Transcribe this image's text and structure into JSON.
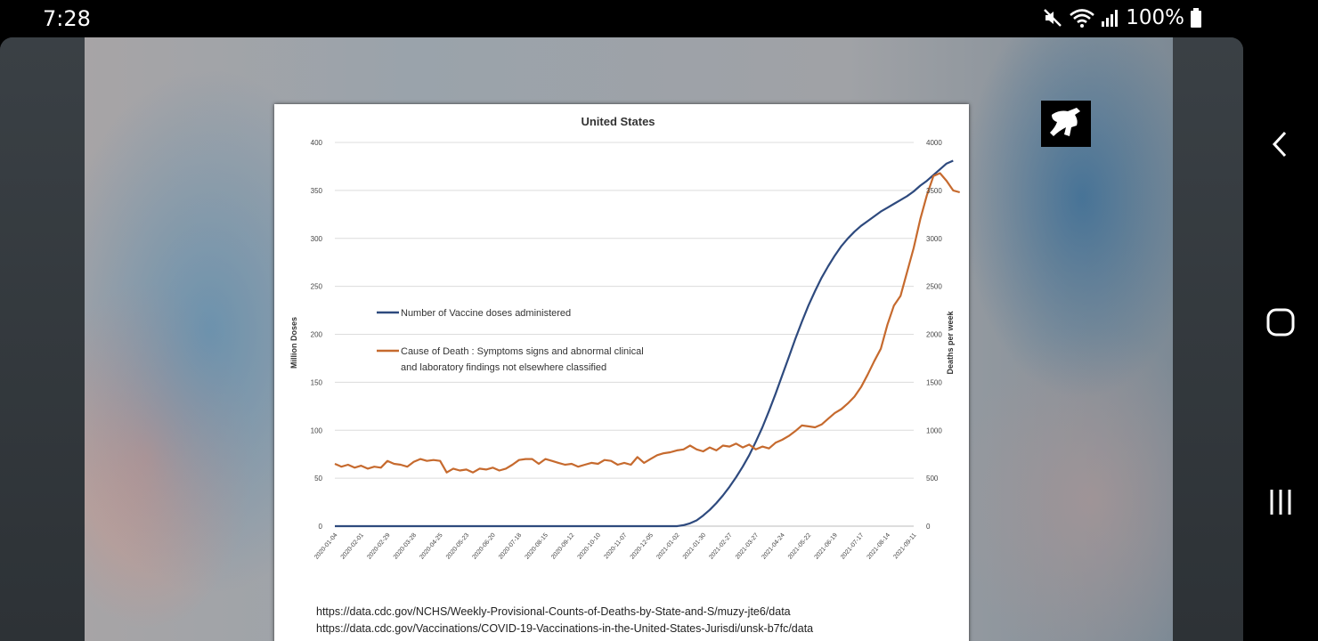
{
  "status_bar": {
    "time": "7:28",
    "battery": "100%"
  },
  "chart_data": {
    "type": "line",
    "title": "United States",
    "ylabel_left": "Million Doses",
    "ylabel_right": "Deaths per week",
    "ylim_left": [
      0,
      400
    ],
    "ylim_right": [
      0,
      4000
    ],
    "y_ticks_left": [
      "0",
      "50",
      "100",
      "150",
      "200",
      "250",
      "300",
      "350",
      "400"
    ],
    "y_ticks_right": [
      "0",
      "500",
      "1000",
      "1500",
      "2000",
      "2500",
      "3000",
      "3500",
      "4000"
    ],
    "x_ticks": [
      "2020-01-04",
      "2020-02-01",
      "2020-02-29",
      "2020-03-28",
      "2020-04-25",
      "2020-05-23",
      "2020-06-20",
      "2020-07-18",
      "2020-08-15",
      "2020-09-12",
      "2020-10-10",
      "2020-11-07",
      "2020-12-05",
      "2021-01-02",
      "2021-01-30",
      "2021-02-27",
      "2021-03-27",
      "2021-04-24",
      "2021-05-22",
      "2021-06-19",
      "2021-07-17",
      "2021-08-14",
      "2021-09-11"
    ],
    "grid": "horizontal",
    "legend_position": "center-left",
    "series": [
      {
        "name": "Number of Vaccine doses administered",
        "axis": "left",
        "color": "#2e4a7e",
        "points": [
          [
            0,
            0
          ],
          [
            20,
            0
          ],
          [
            40,
            0
          ],
          [
            52,
            0
          ],
          [
            53,
            1
          ],
          [
            54,
            3
          ],
          [
            55,
            6
          ],
          [
            56,
            11
          ],
          [
            57,
            17
          ],
          [
            58,
            24
          ],
          [
            59,
            32
          ],
          [
            60,
            41
          ],
          [
            61,
            51
          ],
          [
            62,
            62
          ],
          [
            63,
            74
          ],
          [
            64,
            88
          ],
          [
            65,
            103
          ],
          [
            66,
            120
          ],
          [
            67,
            138
          ],
          [
            68,
            157
          ],
          [
            69,
            176
          ],
          [
            70,
            195
          ],
          [
            71,
            213
          ],
          [
            72,
            230
          ],
          [
            73,
            245
          ],
          [
            74,
            259
          ],
          [
            75,
            271
          ],
          [
            76,
            282
          ],
          [
            77,
            292
          ],
          [
            78,
            300
          ],
          [
            79,
            307
          ],
          [
            80,
            313
          ],
          [
            81,
            318
          ],
          [
            82,
            323
          ],
          [
            83,
            328
          ],
          [
            84,
            332
          ],
          [
            85,
            336
          ],
          [
            86,
            340
          ],
          [
            87,
            344
          ],
          [
            88,
            349
          ],
          [
            89,
            355
          ],
          [
            90,
            360
          ],
          [
            91,
            366
          ],
          [
            92,
            372
          ],
          [
            93,
            378
          ],
          [
            94,
            381
          ]
        ]
      },
      {
        "name": "Cause of Death : Symptoms signs and abnormal clinical",
        "name_line2": "and laboratory findings not elsewhere classified",
        "axis": "right",
        "color": "#c66a2e",
        "points": [
          [
            0,
            650
          ],
          [
            1,
            620
          ],
          [
            2,
            640
          ],
          [
            3,
            610
          ],
          [
            4,
            630
          ],
          [
            5,
            600
          ],
          [
            6,
            620
          ],
          [
            7,
            610
          ],
          [
            8,
            680
          ],
          [
            9,
            650
          ],
          [
            10,
            640
          ],
          [
            11,
            620
          ],
          [
            12,
            670
          ],
          [
            13,
            700
          ],
          [
            14,
            680
          ],
          [
            15,
            690
          ],
          [
            16,
            680
          ],
          [
            17,
            560
          ],
          [
            18,
            600
          ],
          [
            19,
            580
          ],
          [
            20,
            590
          ],
          [
            21,
            560
          ],
          [
            22,
            600
          ],
          [
            23,
            590
          ],
          [
            24,
            610
          ],
          [
            25,
            580
          ],
          [
            26,
            600
          ],
          [
            27,
            640
          ],
          [
            28,
            690
          ],
          [
            29,
            700
          ],
          [
            30,
            700
          ],
          [
            31,
            650
          ],
          [
            32,
            700
          ],
          [
            33,
            680
          ],
          [
            34,
            660
          ],
          [
            35,
            640
          ],
          [
            36,
            650
          ],
          [
            37,
            620
          ],
          [
            38,
            640
          ],
          [
            39,
            660
          ],
          [
            40,
            650
          ],
          [
            41,
            690
          ],
          [
            42,
            680
          ],
          [
            43,
            640
          ],
          [
            44,
            660
          ],
          [
            45,
            640
          ],
          [
            46,
            720
          ],
          [
            47,
            660
          ],
          [
            48,
            700
          ],
          [
            49,
            740
          ],
          [
            50,
            760
          ],
          [
            51,
            770
          ],
          [
            52,
            790
          ],
          [
            53,
            800
          ],
          [
            54,
            840
          ],
          [
            55,
            800
          ],
          [
            56,
            780
          ],
          [
            57,
            820
          ],
          [
            58,
            790
          ],
          [
            59,
            840
          ],
          [
            60,
            830
          ],
          [
            61,
            860
          ],
          [
            62,
            820
          ],
          [
            63,
            850
          ],
          [
            64,
            800
          ],
          [
            65,
            830
          ],
          [
            66,
            810
          ],
          [
            67,
            870
          ],
          [
            68,
            900
          ],
          [
            69,
            940
          ],
          [
            70,
            990
          ],
          [
            71,
            1050
          ],
          [
            72,
            1040
          ],
          [
            73,
            1030
          ],
          [
            74,
            1060
          ],
          [
            75,
            1120
          ],
          [
            76,
            1180
          ],
          [
            77,
            1220
          ],
          [
            78,
            1280
          ],
          [
            79,
            1350
          ],
          [
            80,
            1450
          ],
          [
            81,
            1580
          ],
          [
            82,
            1720
          ],
          [
            83,
            1850
          ],
          [
            84,
            2100
          ],
          [
            85,
            2300
          ],
          [
            86,
            2400
          ],
          [
            87,
            2650
          ],
          [
            88,
            2900
          ],
          [
            89,
            3200
          ],
          [
            90,
            3450
          ],
          [
            91,
            3650
          ],
          [
            92,
            3680
          ],
          [
            93,
            3600
          ],
          [
            94,
            3500
          ],
          [
            95,
            3480
          ]
        ]
      }
    ]
  },
  "sources": [
    "https://data.cdc.gov/NCHS/Weekly-Provisional-Counts-of-Deaths-by-State-and-S/muzy-jte6/data",
    "https://data.cdc.gov/Vaccinations/COVID-19-Vaccinations-in-the-United-States-Jurisdi/unsk-b7fc/data"
  ],
  "nav": {
    "back_icon": "chevron-left-icon",
    "home_icon": "home-icon",
    "recents_icon": "recents-icon"
  }
}
